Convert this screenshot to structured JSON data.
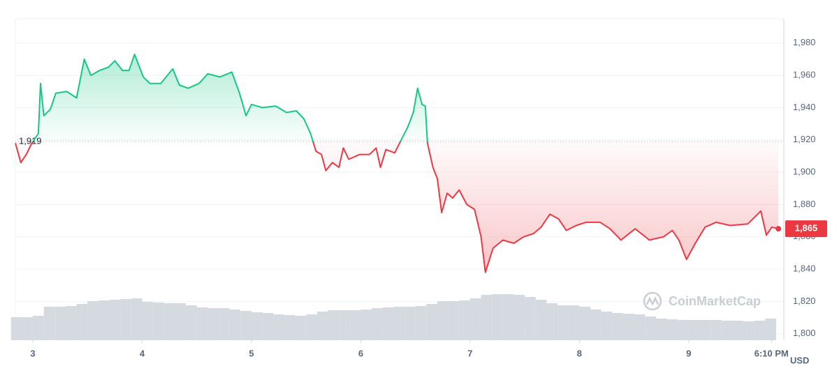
{
  "chart_data": {
    "type": "line",
    "x": [
      2.84,
      2.89,
      2.94,
      2.99,
      3.05,
      3.07,
      3.1,
      3.16,
      3.21,
      3.31,
      3.4,
      3.47,
      3.53,
      3.61,
      3.69,
      3.75,
      3.82,
      3.88,
      3.93,
      4.01,
      4.07,
      4.17,
      4.28,
      4.34,
      4.42,
      4.52,
      4.6,
      4.71,
      4.82,
      4.89,
      4.95,
      5.0,
      5.1,
      5.22,
      5.32,
      5.41,
      5.48,
      5.54,
      5.59,
      5.64,
      5.68,
      5.74,
      5.8,
      5.84,
      5.89,
      5.99,
      6.08,
      6.14,
      6.18,
      6.23,
      6.31,
      6.37,
      6.43,
      6.48,
      6.52,
      6.56,
      6.59,
      6.61,
      6.66,
      6.7,
      6.74,
      6.79,
      6.84,
      6.9,
      6.97,
      7.04,
      7.1,
      7.14,
      7.21,
      7.3,
      7.4,
      7.49,
      7.58,
      7.65,
      7.73,
      7.81,
      7.88,
      7.97,
      8.06,
      8.19,
      8.28,
      8.38,
      8.51,
      8.64,
      8.77,
      8.85,
      8.91,
      8.98,
      9.06,
      9.15,
      9.25,
      9.38,
      9.54,
      9.66,
      9.71,
      9.76,
      9.82
    ],
    "values": [
      1918,
      1906,
      1911,
      1918,
      1924,
      1955,
      1935,
      1939,
      1949,
      1950,
      1946,
      1970,
      1960,
      1963,
      1965,
      1969,
      1963,
      1963,
      1973,
      1959,
      1955,
      1955,
      1964,
      1954,
      1952,
      1955,
      1961,
      1959,
      1962,
      1949,
      1935,
      1942,
      1940,
      1941,
      1937,
      1938,
      1933,
      1924,
      1913,
      1911,
      1901,
      1906,
      1903,
      1915,
      1908,
      1911,
      1911,
      1915,
      1903,
      1914,
      1912,
      1920,
      1928,
      1937,
      1952,
      1942,
      1941,
      1918,
      1903,
      1896,
      1875,
      1887,
      1884,
      1889,
      1880,
      1877,
      1860,
      1838,
      1853,
      1858,
      1856,
      1860,
      1862,
      1866,
      1874,
      1871,
      1864,
      1867,
      1869,
      1869,
      1865,
      1858,
      1865,
      1858,
      1860,
      1864,
      1858,
      1846,
      1856,
      1866,
      1869,
      1867,
      1868,
      1876,
      1861,
      1866,
      1865
    ],
    "up_color": "#16c784",
    "down_color": "#ea3943",
    "baseline": {
      "value": 1919,
      "label": "1,919"
    },
    "last_value_label": "1,865",
    "volume": {
      "color": "#d5d9e0",
      "x": [
        2.85,
        2.95,
        3.05,
        3.15,
        3.25,
        3.35,
        3.45,
        3.55,
        3.65,
        3.75,
        3.85,
        3.95,
        4.05,
        4.15,
        4.25,
        4.35,
        4.45,
        4.55,
        4.65,
        4.75,
        4.85,
        4.95,
        5.05,
        5.15,
        5.25,
        5.35,
        5.45,
        5.55,
        5.65,
        5.75,
        5.85,
        5.95,
        6.05,
        6.15,
        6.25,
        6.35,
        6.45,
        6.55,
        6.65,
        6.75,
        6.85,
        6.95,
        7.05,
        7.15,
        7.25,
        7.35,
        7.45,
        7.55,
        7.65,
        7.75,
        7.85,
        7.95,
        8.05,
        8.15,
        8.25,
        8.35,
        8.45,
        8.55,
        8.65,
        8.75,
        8.85,
        8.95,
        9.05,
        9.15,
        9.25,
        9.35,
        9.45,
        9.55,
        9.65,
        9.75
      ],
      "values": [
        33,
        33,
        35,
        48,
        48,
        49,
        52,
        56,
        57,
        58,
        59,
        60,
        55,
        54,
        53,
        53,
        50,
        47,
        46,
        46,
        44,
        42,
        40,
        39,
        37,
        36,
        35,
        37,
        41,
        43,
        43,
        43,
        44,
        46,
        47,
        48,
        48,
        49,
        52,
        56,
        56,
        57,
        60,
        65,
        66,
        66,
        65,
        62,
        58,
        53,
        50,
        50,
        48,
        44,
        41,
        39,
        38,
        37,
        34,
        31,
        30,
        29,
        29,
        29,
        29,
        28,
        28,
        27,
        28,
        31
      ]
    },
    "xlim": [
      2.84,
      9.87
    ],
    "xticks": [
      3,
      4,
      5,
      6,
      7,
      8,
      9,
      {
        "value": 9.757,
        "label": "6:10 PM"
      }
    ],
    "ylim": [
      1796,
      1995
    ],
    "yticks": [
      {
        "value": 1800,
        "label": "1,800"
      },
      {
        "value": 1820,
        "label": "1,820"
      },
      {
        "value": 1840,
        "label": "1,840"
      },
      {
        "value": 1860,
        "label": "1,860"
      },
      {
        "value": 1880,
        "label": "1,880"
      },
      {
        "value": 1900,
        "label": "1,900"
      },
      {
        "value": 1920,
        "label": "1,920"
      },
      {
        "value": 1940,
        "label": "1,940"
      },
      {
        "value": 1960,
        "label": "1,960"
      },
      {
        "value": 1980,
        "label": "1,980"
      }
    ],
    "grid": true,
    "currency": "USD",
    "watermark": "CoinMarketCap"
  }
}
